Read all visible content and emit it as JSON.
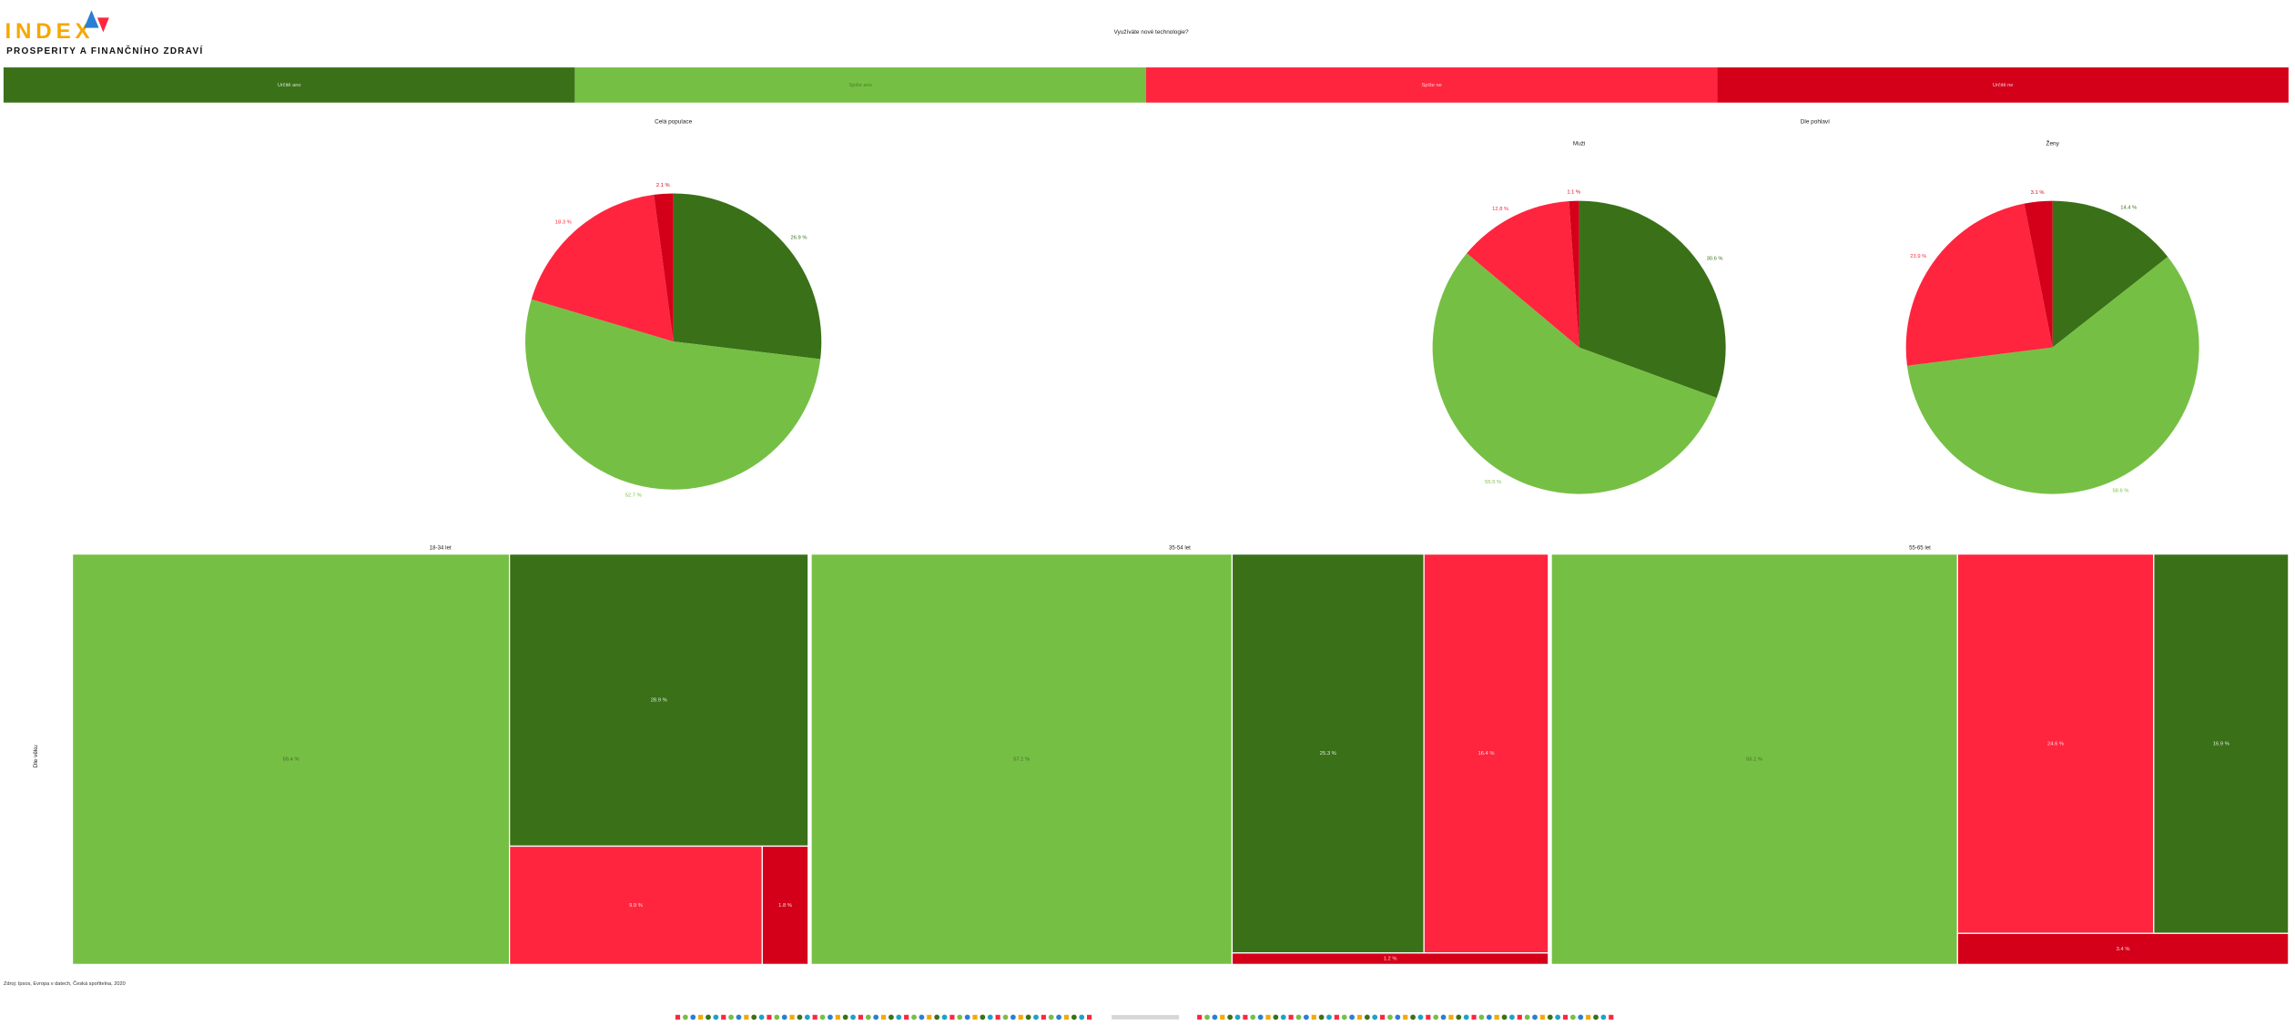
{
  "header": {
    "logo": "INDEX",
    "subtitle": "PROSPERITY A FINANČNÍHO ZDRAVÍ",
    "title": "Využíváte nové technologie?"
  },
  "legend": {
    "categories": [
      "Určitě ano",
      "Spíše ano",
      "Spíše ne",
      "Určitě ne"
    ],
    "colors": [
      "#3a7118",
      "#76bf45",
      "#ff253f",
      "#d4001a"
    ]
  },
  "sections": {
    "gender": "Dle pohlaví",
    "age": "Dle věku"
  },
  "chart_data": [
    {
      "type": "pie",
      "title": "Celá populace",
      "values": [
        26.9,
        52.7,
        18.3,
        2.1
      ],
      "value_labels": [
        "26.9 %",
        "52.7 %",
        "18.3 %",
        "2.1 %"
      ]
    },
    {
      "type": "pie",
      "title": "Muži",
      "values": [
        30.6,
        55.5,
        12.8,
        1.1
      ],
      "value_labels": [
        "30.6 %",
        "55.5 %",
        "12.8 %",
        "1.1 %"
      ]
    },
    {
      "type": "pie",
      "title": "Ženy",
      "values": [
        14.4,
        58.6,
        23.9,
        3.1
      ],
      "value_labels": [
        "14.4 %",
        "58.6 %",
        "23.9 %",
        "3.1 %"
      ]
    },
    {
      "type": "treemap",
      "title": "18-34 let",
      "values": [
        28.9,
        59.4,
        9.9,
        1.8
      ],
      "value_labels": [
        "28.9 %",
        "59.4 %",
        "9.9 %",
        "1.8 %"
      ]
    },
    {
      "type": "treemap",
      "title": "35-54 let",
      "values": [
        25.3,
        57.1,
        16.4,
        1.2
      ],
      "value_labels": [
        "25.3 %",
        "57.1 %",
        "16.4 %",
        "1.2 %"
      ]
    },
    {
      "type": "treemap",
      "title": "55-65 let",
      "values": [
        16.9,
        55.1,
        24.6,
        3.4
      ],
      "value_labels": [
        "16.9 %",
        "55.1 %",
        "24.6 %",
        "3.4 %"
      ]
    }
  ],
  "source": "Zdroj: Ipsos, Evropa v datech, Česká spořitelna, 2020"
}
